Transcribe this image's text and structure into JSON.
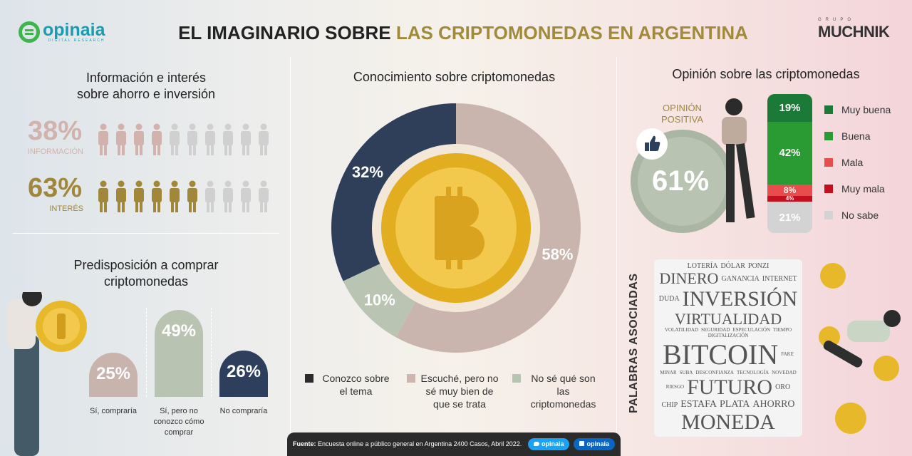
{
  "header": {
    "logo_name": "opinaia",
    "logo_sub": "DIGITAL RESEARCH",
    "title_part1": "EL IMAGINARIO SOBRE ",
    "title_part2": "LAS CRIPTOMONEDAS EN ARGENTINA",
    "partner_small": "GRUPO",
    "partner": "MUCHNIK"
  },
  "info": {
    "title_line1": "Información e interés",
    "title_line2": "sobre ahorro e inversión",
    "rows": [
      {
        "value": "38%",
        "label": "INFORMACIÓN",
        "filled": 4,
        "total": 10,
        "color": "#d2b2ac"
      },
      {
        "value": "63%",
        "label": "INTERÉS",
        "filled": 6,
        "total": 10,
        "color": "#a0873a"
      }
    ]
  },
  "predisposition": {
    "title_line1": "Predisposición a comprar",
    "title_line2": "criptomonedas",
    "bars": [
      {
        "value": "25%",
        "pct": 25,
        "label": "Sí, compraría",
        "color": "#c9b3ad"
      },
      {
        "value": "49%",
        "pct": 49,
        "label": "Sí, pero no conozco cómo comprar",
        "color": "#b8c4b1"
      },
      {
        "value": "26%",
        "pct": 26,
        "label": "No compraría",
        "color": "#2d3f5c"
      }
    ]
  },
  "knowledge": {
    "title": "Conocimiento sobre criptomonedas",
    "legend": [
      {
        "label": "Conozco sobre el tema",
        "color": "#2b2b2b"
      },
      {
        "label": "Escuché, pero no sé muy bien de que se trata",
        "color": "#cdb6b0"
      },
      {
        "label": "No sé qué son las criptomonedas",
        "color": "#b8c4b1"
      }
    ]
  },
  "opinion": {
    "title": "Opinión sobre las criptomonedas",
    "positive_label_1": "OPINIÓN",
    "positive_label_2": "POSITIVA",
    "positive_value": "61%"
  },
  "wordcloud": {
    "title": "PALABRAS ASOCIADAS",
    "words": [
      {
        "t": "LOTERÍA",
        "w": 5
      },
      {
        "t": "DÓLAR",
        "w": 5
      },
      {
        "t": "PONZI",
        "w": 5
      },
      {
        "t": "DINERO",
        "w": 3
      },
      {
        "t": "GANANCIA",
        "w": 5
      },
      {
        "t": "INTERNET",
        "w": 5
      },
      {
        "t": "DUDA",
        "w": 5
      },
      {
        "t": "INVERSIÓN",
        "w": 2
      },
      {
        "t": "VIRTUALIDAD",
        "w": 3
      },
      {
        "t": "VOLATILIDAD",
        "w": 6
      },
      {
        "t": "SEGURIDAD",
        "w": 6
      },
      {
        "t": "ESPECULACIÓN",
        "w": 6
      },
      {
        "t": "TIEMPO",
        "w": 6
      },
      {
        "t": "DIGITALIZACIÓN",
        "w": 6
      },
      {
        "t": "BITCOIN",
        "w": 1
      },
      {
        "t": "FAKE",
        "w": 6
      },
      {
        "t": "MINAR",
        "w": 6
      },
      {
        "t": "SUBA",
        "w": 6
      },
      {
        "t": "DESCONFIANZA",
        "w": 6
      },
      {
        "t": "TECNOLOGÍA",
        "w": 6
      },
      {
        "t": "NOVEDAD",
        "w": 6
      },
      {
        "t": "RIESGO",
        "w": 6
      },
      {
        "t": "FUTURO",
        "w": 2
      },
      {
        "t": "ORO",
        "w": 5
      },
      {
        "t": "CHIP",
        "w": 5
      },
      {
        "t": "ESTAFA",
        "w": 4
      },
      {
        "t": "PLATA",
        "w": 4
      },
      {
        "t": "AHORRO",
        "w": 4
      },
      {
        "t": "MONEDA",
        "w": 2
      }
    ]
  },
  "footer": {
    "source_label": "Fuente:",
    "source_text": "Encuesta online a público general en Argentina 2400 Casos, Abril 2022.",
    "twitter": "opinaia",
    "linkedin": "opinaia"
  },
  "chart_data": [
    {
      "type": "pie",
      "title": "Conocimiento sobre criptomonedas",
      "categories": [
        "Escuché, pero no sé muy bien de que se trata",
        "No sé qué son las criptomonedas",
        "Conozco sobre el tema"
      ],
      "values": [
        58,
        10,
        32
      ],
      "labels": [
        "58%",
        "10%",
        "32%"
      ],
      "colors": [
        "#c9b5ae",
        "#b9c4b2",
        "#2f3f5a"
      ]
    },
    {
      "type": "bar",
      "title": "Opinión sobre las criptomonedas",
      "stacked": true,
      "categories": [
        "Muy buena",
        "Buena",
        "Mala",
        "Muy mala",
        "No sabe"
      ],
      "values": [
        19,
        42,
        8,
        4,
        21
      ],
      "labels": [
        "19%",
        "42%",
        "8%",
        "4%",
        "21%"
      ],
      "colors": [
        "#1b7a37",
        "#2a9a33",
        "#e84c4c",
        "#c4101e",
        "#d3d3d3"
      ]
    },
    {
      "type": "bar",
      "title": "Predisposición a comprar criptomonedas",
      "categories": [
        "Sí, compraría",
        "Sí, pero no conozco cómo comprar",
        "No compraría"
      ],
      "values": [
        25,
        49,
        26
      ]
    }
  ]
}
